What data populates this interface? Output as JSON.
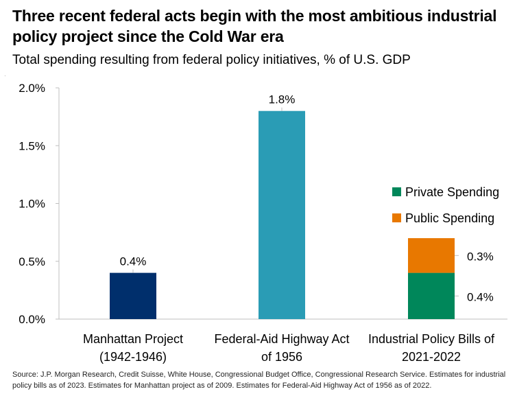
{
  "header": {
    "title": "Three recent federal acts begin with the most ambitious industrial policy project since the Cold War era",
    "subtitle": "Total spending resulting from federal policy initiatives, % of U.S. GDP"
  },
  "footer": {
    "source": "Source: J.P. Morgan Research, Credit Suisse, White House, Congressional Budget Office, Congressional Research Service. Estimates for industrial policy bills as of 2023. Estimates for Manhattan project as of 2009. Estimates for Federal-Aid Highway Act of 1956 as of 2022."
  },
  "chart_data": {
    "type": "bar",
    "title": "Three recent federal acts begin with the most ambitious industrial policy project since the Cold War era",
    "subtitle": "Total spending resulting from federal policy initiatives, % of U.S. GDP",
    "ylim": [
      0,
      2.0
    ],
    "yticks": [
      "0.0%",
      "0.5%",
      "1.0%",
      "1.5%",
      "2.0%"
    ],
    "ytick_values": [
      0,
      0.5,
      1.0,
      1.5,
      2.0
    ],
    "grid": false,
    "legend_position": "right",
    "bars": [
      {
        "category": [
          "Manhattan Project",
          "(1942-1946)"
        ],
        "segments": [
          {
            "value": 0.4,
            "color": "#002f6c"
          }
        ],
        "label": "0.4%"
      },
      {
        "category": [
          "Federal-Aid Highway Act",
          "of 1956"
        ],
        "segments": [
          {
            "value": 1.8,
            "color": "#2a9cb5"
          }
        ],
        "label": "1.8%"
      },
      {
        "category": [
          "Industrial Policy Bills of",
          "2021-2022"
        ],
        "segments": [
          {
            "name": "Private Spending",
            "value": 0.4,
            "color": "#00875a",
            "label": "0.4%"
          },
          {
            "name": "Public Spending",
            "value": 0.3,
            "color": "#e87800",
            "label": "0.3%"
          }
        ]
      }
    ],
    "legend": [
      {
        "name": "Private Spending",
        "color": "#00875a"
      },
      {
        "name": "Public Spending",
        "color": "#e87800"
      }
    ]
  }
}
